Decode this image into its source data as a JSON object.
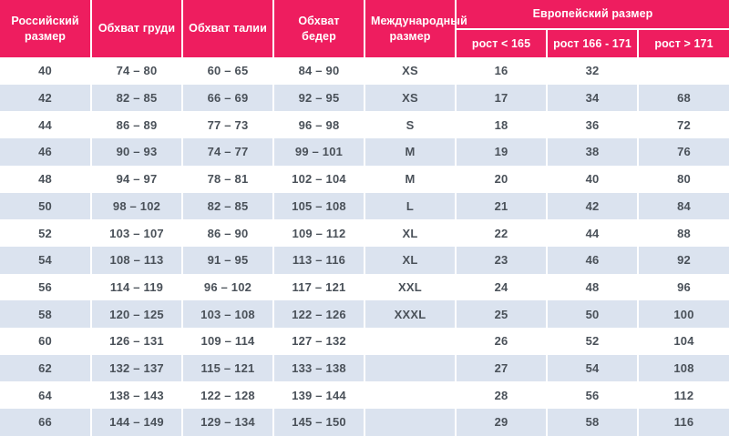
{
  "chart_data": {
    "type": "table",
    "header": {
      "columns": [
        "Российский размер",
        "Обхват груди",
        "Обхват талии",
        "Обхват бедер",
        "Международный размер"
      ],
      "group": "Европейский размер",
      "subcolumns": [
        "рост < 165",
        "рост 166 - 171",
        "рост > 171"
      ]
    },
    "rows": [
      [
        "40",
        "74 – 80",
        "60 – 65",
        "84 – 90",
        "XS",
        "16",
        "32",
        ""
      ],
      [
        "42",
        "82 – 85",
        "66 – 69",
        "92 – 95",
        "XS",
        "17",
        "34",
        "68"
      ],
      [
        "44",
        "86 – 89",
        "77 – 73",
        "96 – 98",
        "S",
        "18",
        "36",
        "72"
      ],
      [
        "46",
        "90 – 93",
        "74 – 77",
        "99 – 101",
        "M",
        "19",
        "38",
        "76"
      ],
      [
        "48",
        "94 – 97",
        "78 – 81",
        "102 – 104",
        "M",
        "20",
        "40",
        "80"
      ],
      [
        "50",
        "98 – 102",
        "82 – 85",
        "105 – 108",
        "L",
        "21",
        "42",
        "84"
      ],
      [
        "52",
        "103 – 107",
        "86 – 90",
        "109 – 112",
        "XL",
        "22",
        "44",
        "88"
      ],
      [
        "54",
        "108 – 113",
        "91 – 95",
        "113 – 116",
        "XL",
        "23",
        "46",
        "92"
      ],
      [
        "56",
        "114 – 119",
        "96 – 102",
        "117 – 121",
        "XXL",
        "24",
        "48",
        "96"
      ],
      [
        "58",
        "120 – 125",
        "103 – 108",
        "122 – 126",
        "XXXL",
        "25",
        "50",
        "100"
      ],
      [
        "60",
        "126 – 131",
        "109 – 114",
        "127 – 132",
        "",
        "26",
        "52",
        "104"
      ],
      [
        "62",
        "132 – 137",
        "115 – 121",
        "133 – 138",
        "",
        "27",
        "54",
        "108"
      ],
      [
        "64",
        "138 – 143",
        "122 – 128",
        "139 – 144",
        "",
        "28",
        "56",
        "112"
      ],
      [
        "66",
        "144 – 149",
        "129 – 134",
        "145 – 150",
        "",
        "29",
        "58",
        "116"
      ]
    ],
    "layout": {
      "columns_total": 8,
      "stripe_pattern": "alternating white / light blue, starting white"
    }
  },
  "colors": {
    "header_bg": "#ee1d5f",
    "header_text": "#ffffff",
    "row_alt_bg": "#dbe3ef",
    "row_bg": "#ffffff",
    "body_text": "#4a5159",
    "separator": "#ffffff"
  }
}
